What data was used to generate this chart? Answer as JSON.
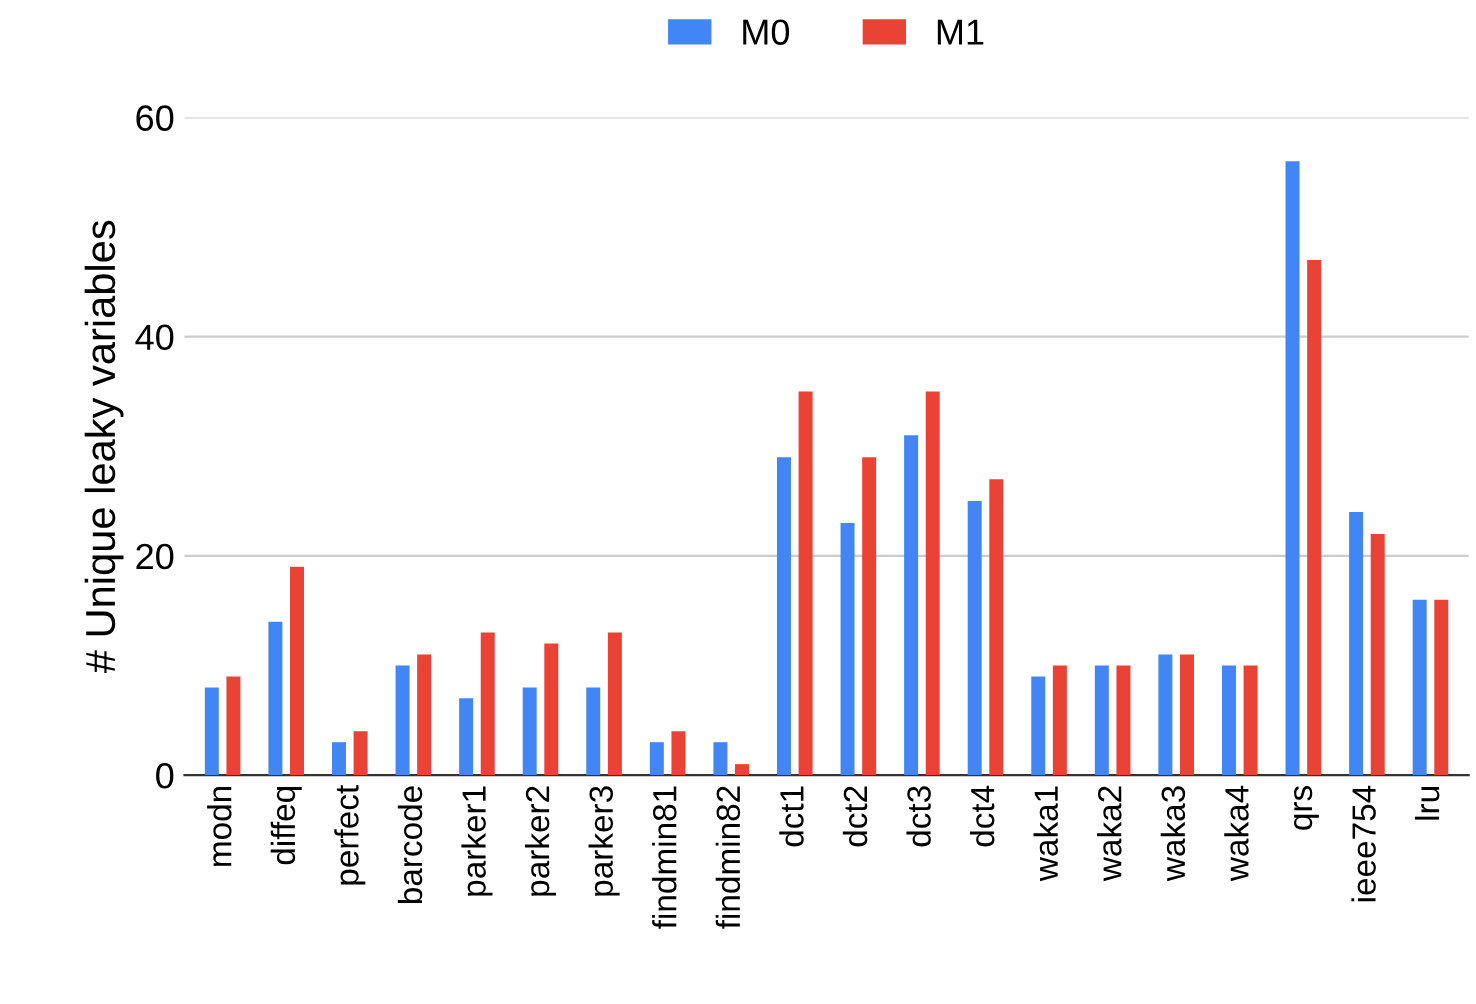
{
  "chart_data": {
    "type": "bar",
    "ylabel": "# Unique leaky variables",
    "categories": [
      "modn",
      "diffeq",
      "perfect",
      "barcode",
      "parker1",
      "parker2",
      "parker3",
      "findmin81",
      "findmin82",
      "dct1",
      "dct2",
      "dct3",
      "dct4",
      "waka1",
      "waka2",
      "waka3",
      "waka4",
      "qrs",
      "ieee754",
      "lru"
    ],
    "series": [
      {
        "name": "M0",
        "color": "#4285f4",
        "values": [
          8,
          14,
          3,
          10,
          7,
          8,
          8,
          3,
          3,
          29,
          23,
          31,
          25,
          9,
          10,
          11,
          10,
          56,
          24,
          16
        ]
      },
      {
        "name": "M1",
        "color": "#ea4335",
        "values": [
          9,
          19,
          4,
          11,
          13,
          12,
          13,
          4,
          1,
          35,
          29,
          35,
          27,
          10,
          10,
          11,
          10,
          47,
          22,
          16
        ]
      }
    ],
    "ylim": [
      0,
      60
    ],
    "yticks": [
      0,
      20,
      40,
      60
    ],
    "grid": "y",
    "legend": "top"
  }
}
